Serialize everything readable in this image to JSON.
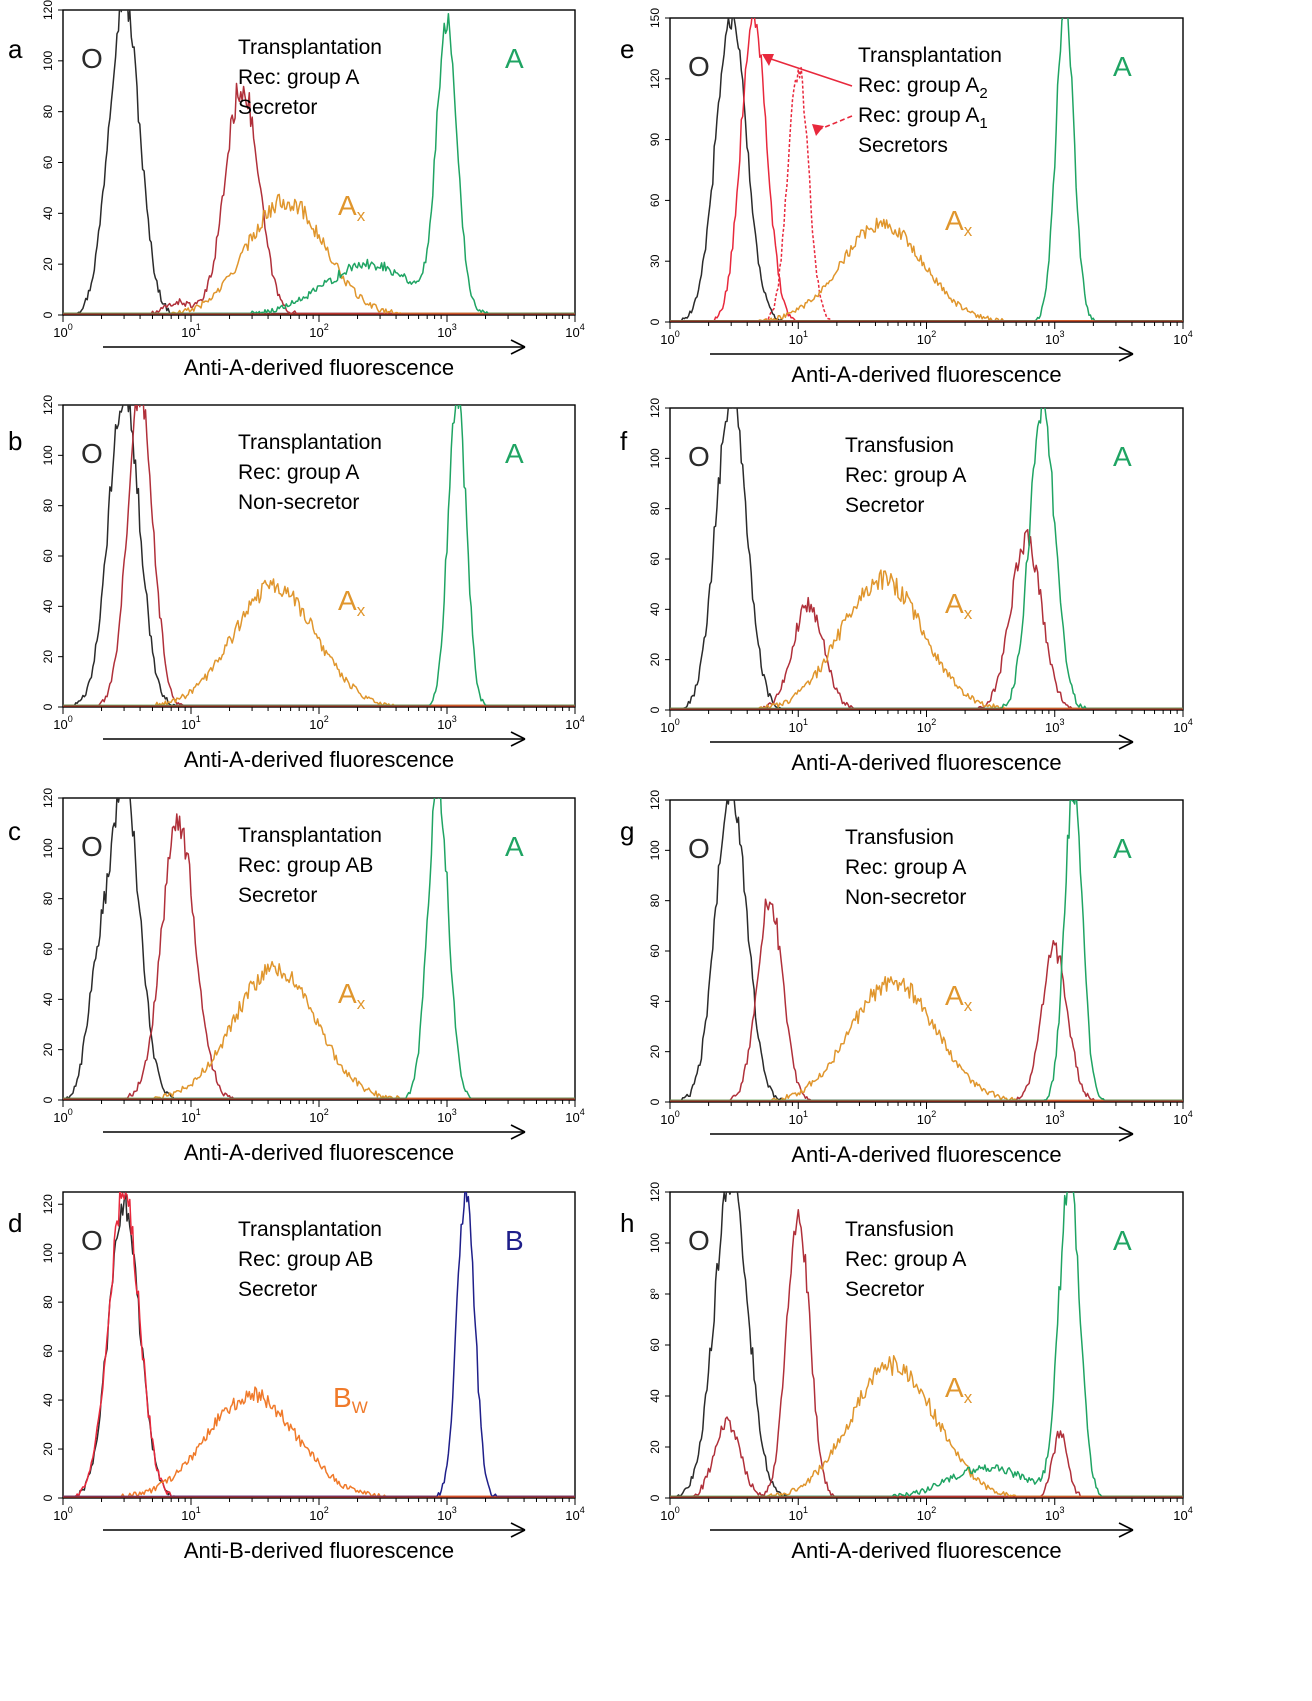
{
  "figure_title": "",
  "colors": {
    "O": "#2b2b2b",
    "A": "#1fa463",
    "Ax": "#e0962d",
    "B": "#1f1f8a",
    "Bw": "#f07a2a",
    "recipient": "#b0303a",
    "red": "#e8283c",
    "arrow": "#000000"
  },
  "chart_data": [
    {
      "panel": "a",
      "type": "line",
      "xscale": "log",
      "xlim": [
        1,
        10000
      ],
      "ylim": [
        0,
        120
      ],
      "yticks": [
        0,
        20,
        40,
        60,
        80,
        100,
        120
      ],
      "xlabel": "Anti-A-derived fluorescence",
      "group_labels": [
        {
          "text": "O",
          "color": "O"
        },
        {
          "text": "A",
          "color": "A"
        },
        {
          "text": "A",
          "sub": "x",
          "color": "Ax"
        }
      ],
      "annotation": [
        "Transplantation",
        "Rec: group A",
        "Secretor"
      ],
      "series": [
        {
          "color": "O",
          "peaks": [
            [
              3,
              125,
              0.12
            ]
          ]
        },
        {
          "color": "recipient",
          "peaks": [
            [
              25,
              90,
              0.13
            ],
            [
              8,
              5,
              0.1
            ]
          ]
        },
        {
          "color": "Ax",
          "peaks": [
            [
              55,
              45,
              0.3
            ]
          ]
        },
        {
          "color": "A",
          "peaks": [
            [
              1000,
              112,
              0.08
            ],
            [
              250,
              20,
              0.35
            ]
          ]
        }
      ]
    },
    {
      "panel": "b",
      "type": "line",
      "xscale": "log",
      "xlim": [
        1,
        10000
      ],
      "ylim": [
        0,
        120
      ],
      "yticks": [
        0,
        20,
        40,
        60,
        80,
        100,
        120
      ],
      "xlabel": "Anti-A-derived fluorescence",
      "group_labels": [
        {
          "text": "O",
          "color": "O"
        },
        {
          "text": "A",
          "color": "A"
        },
        {
          "text": "A",
          "sub": "x",
          "color": "Ax"
        }
      ],
      "annotation": [
        "Transplantation",
        "Rec: group A",
        "Non-secretor"
      ],
      "series": [
        {
          "color": "O",
          "peaks": [
            [
              3,
              125,
              0.12
            ]
          ]
        },
        {
          "color": "recipient",
          "peaks": [
            [
              4,
              125,
              0.1
            ]
          ]
        },
        {
          "color": "Ax",
          "peaks": [
            [
              45,
              48,
              0.32
            ]
          ]
        },
        {
          "color": "A",
          "peaks": [
            [
              1200,
              125,
              0.07
            ]
          ]
        }
      ]
    },
    {
      "panel": "c",
      "type": "line",
      "xscale": "log",
      "xlim": [
        1,
        10000
      ],
      "ylim": [
        0,
        120
      ],
      "yticks": [
        0,
        20,
        40,
        60,
        80,
        100,
        120
      ],
      "xlabel": "Anti-A-derived fluorescence",
      "group_labels": [
        {
          "text": "O",
          "color": "O"
        },
        {
          "text": "A",
          "color": "A"
        },
        {
          "text": "A",
          "sub": "x",
          "color": "Ax"
        }
      ],
      "annotation": [
        "Transplantation",
        "Rec: group AB",
        "Secretor"
      ],
      "series": [
        {
          "color": "O",
          "peaks": [
            [
              3,
              125,
              0.12
            ],
            [
              1.8,
              35,
              0.08
            ]
          ]
        },
        {
          "color": "recipient",
          "peaks": [
            [
              8,
              110,
              0.13
            ]
          ]
        },
        {
          "color": "Ax",
          "peaks": [
            [
              45,
              52,
              0.32
            ]
          ]
        },
        {
          "color": "A",
          "peaks": [
            [
              850,
              125,
              0.08
            ]
          ]
        }
      ]
    },
    {
      "panel": "d",
      "type": "line",
      "xscale": "log",
      "xlim": [
        1,
        10000
      ],
      "ylim": [
        0,
        125
      ],
      "yticks": [
        0,
        20,
        40,
        60,
        80,
        100,
        120
      ],
      "xlabel": "Anti-B-derived fluorescence",
      "group_labels": [
        {
          "text": "O",
          "color": "O"
        },
        {
          "text": "B",
          "color": "B"
        },
        {
          "text": "B",
          "sub": "W",
          "color": "Bw"
        }
      ],
      "annotation": [
        "Transplantation",
        "Rec: group AB",
        "Secretor"
      ],
      "series": [
        {
          "color": "O",
          "peaks": [
            [
              3,
              120,
              0.12
            ]
          ]
        },
        {
          "color": "red",
          "peaks": [
            [
              3,
              125,
              0.12
            ]
          ]
        },
        {
          "color": "Bw",
          "peaks": [
            [
              30,
              42,
              0.35
            ]
          ]
        },
        {
          "color": "B",
          "peaks": [
            [
              1400,
              125,
              0.07
            ]
          ]
        }
      ]
    },
    {
      "panel": "e",
      "type": "line",
      "xscale": "log",
      "xlim": [
        1,
        10000
      ],
      "ylim": [
        0,
        150
      ],
      "yticks": [
        0,
        30,
        60,
        90,
        120,
        150
      ],
      "xlabel": "Anti-A-derived fluorescence",
      "group_labels": [
        {
          "text": "O",
          "color": "O"
        },
        {
          "text": "A",
          "color": "A"
        },
        {
          "text": "A",
          "sub": "x",
          "color": "Ax"
        }
      ],
      "annotation_lines": [
        {
          "text": "Transplantation"
        },
        {
          "text": "Rec: group A",
          "sub": "2"
        },
        {
          "text": "Rec: group A",
          "sub": "1"
        },
        {
          "text": "Secretors"
        }
      ],
      "series": [
        {
          "color": "O",
          "peaks": [
            [
              3,
              150,
              0.12
            ]
          ]
        },
        {
          "color": "red",
          "peaks": [
            [
              4.5,
              152,
              0.1
            ]
          ]
        },
        {
          "color": "red",
          "dashed": true,
          "peaks": [
            [
              10,
              125,
              0.08
            ]
          ]
        },
        {
          "color": "Ax",
          "peaks": [
            [
              45,
              48,
              0.32
            ]
          ]
        },
        {
          "color": "A",
          "peaks": [
            [
              1200,
              155,
              0.07
            ]
          ]
        }
      ]
    },
    {
      "panel": "f",
      "type": "line",
      "xscale": "log",
      "xlim": [
        1,
        10000
      ],
      "ylim": [
        0,
        120
      ],
      "yticks": [
        0,
        20,
        40,
        60,
        80,
        100,
        120
      ],
      "xlabel": "Anti-A-derived fluorescence",
      "group_labels": [
        {
          "text": "O",
          "color": "O"
        },
        {
          "text": "A",
          "color": "A"
        },
        {
          "text": "A",
          "sub": "x",
          "color": "Ax"
        }
      ],
      "annotation": [
        "Transfusion",
        "Rec: group A",
        "Secretor"
      ],
      "series": [
        {
          "color": "O",
          "peaks": [
            [
              3,
              125,
              0.12
            ]
          ]
        },
        {
          "color": "recipient",
          "peaks": [
            [
              12,
              42,
              0.12
            ],
            [
              600,
              68,
              0.12
            ]
          ]
        },
        {
          "color": "Ax",
          "peaks": [
            [
              45,
              52,
              0.32
            ]
          ]
        },
        {
          "color": "A",
          "peaks": [
            [
              800,
              120,
              0.1
            ]
          ]
        }
      ]
    },
    {
      "panel": "g",
      "type": "line",
      "xscale": "log",
      "xlim": [
        1,
        10000
      ],
      "ylim": [
        0,
        120
      ],
      "yticks": [
        0,
        20,
        40,
        60,
        80,
        100,
        120
      ],
      "xlabel": "Anti-A-derived fluorescence",
      "group_labels": [
        {
          "text": "O",
          "color": "O"
        },
        {
          "text": "A",
          "color": "A"
        },
        {
          "text": "A",
          "sub": "x",
          "color": "Ax"
        }
      ],
      "annotation": [
        "Transfusion",
        "Rec: group A",
        "Non-secretor"
      ],
      "series": [
        {
          "color": "O",
          "peaks": [
            [
              3,
              125,
              0.12
            ]
          ]
        },
        {
          "color": "recipient",
          "peaks": [
            [
              6,
              80,
              0.1
            ],
            [
              1000,
              60,
              0.1
            ]
          ]
        },
        {
          "color": "Ax",
          "peaks": [
            [
              55,
              48,
              0.33
            ]
          ]
        },
        {
          "color": "A",
          "peaks": [
            [
              1400,
              125,
              0.07
            ]
          ]
        }
      ]
    },
    {
      "panel": "h",
      "type": "line",
      "xscale": "log",
      "xlim": [
        1,
        10000
      ],
      "ylim": [
        0,
        120
      ],
      "yticks": [
        0,
        20,
        40,
        60,
        80,
        100,
        120
      ],
      "ytick_labels": [
        "0",
        "20",
        "40",
        "60",
        "8⁰",
        "100",
        "120"
      ],
      "xlabel": "Anti-A-derived fluorescence",
      "group_labels": [
        {
          "text": "O",
          "color": "O"
        },
        {
          "text": "A",
          "color": "A"
        },
        {
          "text": "A",
          "sub": "x",
          "color": "Ax"
        }
      ],
      "annotation": [
        "Transfusion",
        "Rec: group A",
        "Secretor"
      ],
      "series": [
        {
          "color": "O",
          "peaks": [
            [
              3,
              125,
              0.13
            ]
          ]
        },
        {
          "color": "recipient",
          "peaks": [
            [
              2.8,
              30,
              0.1
            ],
            [
              10,
              110,
              0.09
            ],
            [
              1100,
              25,
              0.06
            ]
          ]
        },
        {
          "color": "Ax",
          "peaks": [
            [
              55,
              52,
              0.33
            ]
          ]
        },
        {
          "color": "A",
          "peaks": [
            [
              1300,
              125,
              0.08
            ],
            [
              300,
              12,
              0.3
            ]
          ]
        }
      ]
    }
  ]
}
